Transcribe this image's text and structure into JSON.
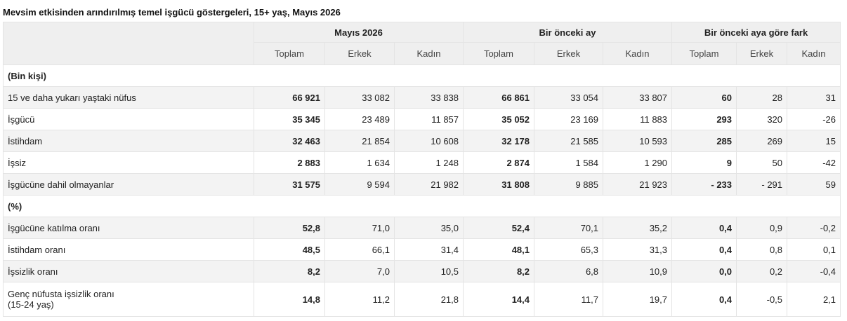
{
  "title": "Mevsim etkisinden arındırılmış temel işgücü göstergeleri, 15+ yaş, Mayıs 2026",
  "groups": [
    "Mayıs 2026",
    "Bir önceki ay",
    "Bir önceki aya göre fark"
  ],
  "subheaders": [
    "Toplam",
    "Erkek",
    "Kadın",
    "Toplam",
    "Erkek",
    "Kadın",
    "Toplam",
    "Erkek",
    "Kadın"
  ],
  "sections": [
    {
      "label": "(Bin kişi)",
      "rows": [
        {
          "label": "15 ve daha yukarı yaştaki nüfus",
          "values": [
            "66 921",
            "33 082",
            "33 838",
            "66 861",
            "33 054",
            "33 807",
            "60",
            "28",
            "31"
          ]
        },
        {
          "label": "İşgücü",
          "values": [
            "35 345",
            "23 489",
            "11 857",
            "35 052",
            "23 169",
            "11 883",
            "293",
            "320",
            "-26"
          ]
        },
        {
          "label": "İstihdam",
          "values": [
            "32 463",
            "21 854",
            "10 608",
            "32 178",
            "21 585",
            "10 593",
            "285",
            "269",
            "15"
          ]
        },
        {
          "label": "İşsiz",
          "values": [
            "2 883",
            "1 634",
            "1 248",
            "2 874",
            "1 584",
            "1 290",
            "9",
            "50",
            "-42"
          ]
        },
        {
          "label": "İşgücüne dahil olmayanlar",
          "values": [
            "31 575",
            "9 594",
            "21 982",
            "31 808",
            "9 885",
            "21 923",
            "- 233",
            "- 291",
            "59"
          ]
        }
      ]
    },
    {
      "label": "(%)",
      "rows": [
        {
          "label": "İşgücüne katılma oranı",
          "values": [
            "52,8",
            "71,0",
            "35,0",
            "52,4",
            "70,1",
            "35,2",
            "0,4",
            "0,9",
            "-0,2"
          ]
        },
        {
          "label": "İstihdam oranı",
          "values": [
            "48,5",
            "66,1",
            "31,4",
            "48,1",
            "65,3",
            "31,3",
            "0,4",
            "0,8",
            "0,1"
          ]
        },
        {
          "label": "İşsizlik oranı",
          "values": [
            "8,2",
            "7,0",
            "10,5",
            "8,2",
            "6,8",
            "10,9",
            "0,0",
            "0,2",
            "-0,4"
          ]
        },
        {
          "label": "Genç nüfusta işsizlik oranı",
          "label2": "(15-24 yaş)",
          "values": [
            "14,8",
            "11,2",
            "21,8",
            "14,4",
            "11,7",
            "19,7",
            "0,4",
            "-0,5",
            "2,1"
          ]
        }
      ]
    }
  ]
}
